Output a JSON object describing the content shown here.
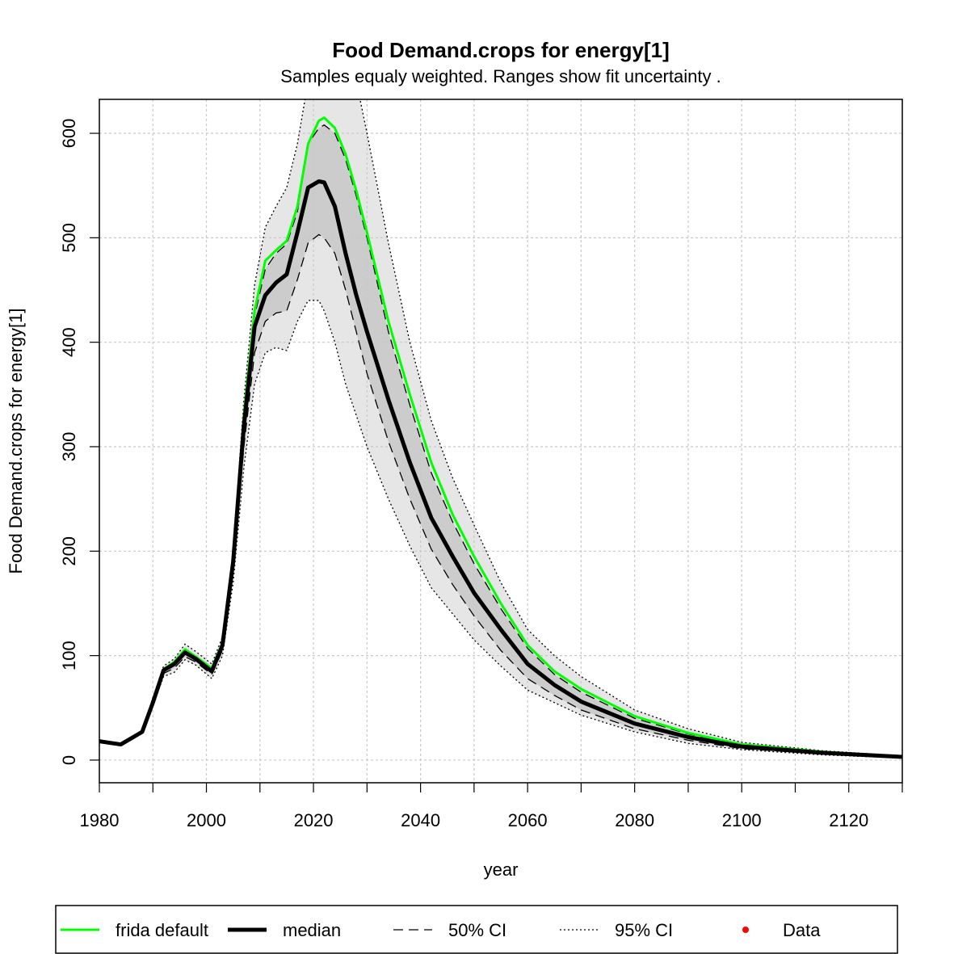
{
  "chart_data": {
    "type": "line",
    "title": "Food Demand.crops for energy[1]",
    "subtitle": "Samples equaly weighted. Ranges show  fit uncertainty .",
    "x_label": "year",
    "y_label": "Food Demand.crops for energy[1]",
    "xlim": [
      1980,
      2130
    ],
    "ylim": [
      -21.7,
      632.5
    ],
    "xticks": [
      1980,
      2000,
      2020,
      2040,
      2060,
      2080,
      2100,
      2120
    ],
    "x_minor_ticks": [
      1990,
      2010,
      2030,
      2050,
      2070,
      2090,
      2110,
      2130
    ],
    "yticks": [
      0,
      100,
      200,
      300,
      400,
      500,
      600
    ],
    "grid": true,
    "x": [
      1980,
      1984,
      1986,
      1988,
      1990,
      1992,
      1994,
      1996,
      1998,
      2001,
      2003,
      2005,
      2007,
      2009,
      2011,
      2013,
      2015,
      2017,
      2019,
      2021,
      2022,
      2024,
      2026,
      2028,
      2030,
      2034,
      2038,
      2042,
      2046,
      2050,
      2055,
      2060,
      2065,
      2070,
      2080,
      2090,
      2100,
      2115,
      2130
    ],
    "bands": [
      {
        "name": "95% CI",
        "fill": "#e6e6e6",
        "dash": "2,3",
        "lower": [
          18,
          15,
          21,
          26,
          52,
          80,
          84,
          96,
          91,
          78,
          100,
          170,
          280,
          360,
          390,
          395,
          392,
          420,
          440,
          440,
          430,
          400,
          360,
          330,
          300,
          250,
          205,
          165,
          140,
          115,
          90,
          67,
          55,
          43,
          27,
          16,
          10,
          5,
          2
        ],
        "upper": [
          18,
          15,
          21,
          28,
          60,
          90,
          97,
          111,
          104,
          92,
          118,
          200,
          345,
          455,
          510,
          530,
          548,
          590,
          650,
          700,
          720,
          715,
          690,
          650,
          600,
          495,
          400,
          325,
          270,
          225,
          170,
          125,
          100,
          80,
          48,
          30,
          17,
          9,
          4
        ]
      },
      {
        "name": "50% CI",
        "fill": "#cccccc",
        "dash": "12,7",
        "lower": [
          18,
          15,
          21,
          27,
          54,
          83,
          88,
          99,
          94,
          82,
          105,
          180,
          300,
          390,
          420,
          428,
          430,
          460,
          495,
          503,
          500,
          485,
          450,
          410,
          370,
          305,
          250,
          202,
          168,
          138,
          105,
          78,
          62,
          48,
          30,
          19,
          11,
          6,
          2
        ],
        "upper": [
          18,
          15,
          21,
          27,
          56,
          87,
          93,
          104,
          98,
          87,
          112,
          193,
          330,
          425,
          470,
          485,
          494,
          525,
          590,
          605,
          608,
          600,
          575,
          540,
          500,
          410,
          340,
          275,
          228,
          188,
          145,
          107,
          82,
          65,
          40,
          25,
          14,
          7,
          3
        ]
      }
    ],
    "series": [
      {
        "name": "frida default",
        "color": "#00ff00",
        "width": 3,
        "values": [
          18,
          15,
          21,
          27,
          57,
          87,
          94,
          106,
          99,
          88,
          112,
          195,
          330,
          430,
          478,
          488,
          497,
          530,
          590,
          612,
          615,
          605,
          580,
          545,
          505,
          420,
          350,
          285,
          235,
          195,
          150,
          110,
          85,
          68,
          42,
          26,
          15,
          8,
          3
        ]
      },
      {
        "name": "median",
        "color": "#000000",
        "width": 5,
        "values": [
          18,
          15,
          21,
          27,
          55,
          86,
          92,
          103,
          97,
          85,
          110,
          190,
          320,
          415,
          445,
          457,
          465,
          505,
          548,
          554,
          553,
          530,
          485,
          445,
          410,
          345,
          285,
          232,
          195,
          160,
          125,
          92,
          72,
          56,
          35,
          22,
          13,
          7,
          3
        ]
      }
    ],
    "data_legend": {
      "name": "Data",
      "color": "#ff0000"
    }
  }
}
